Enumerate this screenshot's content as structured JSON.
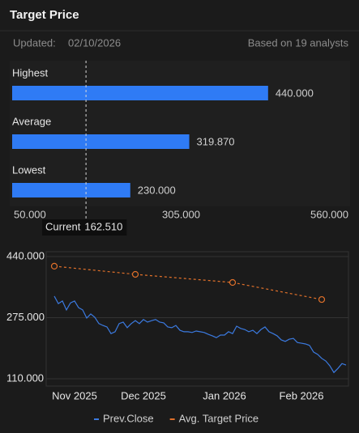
{
  "header": {
    "title": "Target Price",
    "updated_label": "Updated:",
    "updated_date": "02/10/2026",
    "analysts": "Based on 19 analysts"
  },
  "chart_data": [
    {
      "type": "bar",
      "orientation": "horizontal",
      "categories": [
        "Highest",
        "Average",
        "Lowest"
      ],
      "values": [
        440,
        319.87,
        230
      ],
      "value_labels": [
        "440.000",
        "319.870",
        "230.000"
      ],
      "color": "#2f7bf5",
      "xlim": [
        50,
        560
      ],
      "xticks": [
        {
          "value": 50,
          "label": "50.000"
        },
        {
          "value": 305,
          "label": "305.000"
        },
        {
          "value": 560,
          "label": "560.000"
        }
      ],
      "reference_line": {
        "label": "Current",
        "value": 162.51,
        "value_label": "162.510"
      }
    },
    {
      "type": "line",
      "categories": [
        null,
        null,
        null,
        null,
        null,
        "Nov 2025",
        null,
        null,
        null,
        null,
        null,
        null,
        null,
        null,
        null,
        null,
        null,
        null,
        null,
        null,
        null,
        null,
        "Dec 2025",
        null,
        null,
        null,
        null,
        null,
        null,
        null,
        null,
        null,
        null,
        null,
        null,
        null,
        null,
        null,
        null,
        null,
        null,
        null,
        "Jan 2026",
        null,
        null,
        null,
        null,
        null,
        null,
        null,
        null,
        null,
        null,
        null,
        null,
        null,
        null,
        null,
        null,
        null,
        null,
        "Feb 2026",
        null,
        null,
        null,
        null,
        null,
        null,
        null,
        null,
        null,
        null,
        null
      ],
      "series": [
        {
          "name": "Prev.Close",
          "color": "#3b7ae0",
          "values": [
            333,
            313,
            320,
            296,
            315,
            320,
            302,
            296,
            274,
            285,
            276,
            259,
            254,
            250,
            232,
            237,
            259,
            263,
            248,
            259,
            267,
            259,
            270,
            263,
            267,
            270,
            263,
            261,
            250,
            248,
            254,
            241,
            237,
            237,
            235,
            239,
            237,
            235,
            230,
            226,
            221,
            228,
            228,
            237,
            232,
            252,
            246,
            243,
            237,
            241,
            232,
            243,
            250,
            237,
            232,
            226,
            215,
            211,
            217,
            219,
            208,
            206,
            204,
            200,
            182,
            176,
            165,
            158,
            145,
            127,
            138,
            151,
            147
          ]
        },
        {
          "name": "Avg. Target Price",
          "color": "#e0702a",
          "dashed": true,
          "markers": true,
          "connect_gaps": true,
          "values": [
            414,
            null,
            null,
            null,
            null,
            null,
            null,
            null,
            null,
            null,
            null,
            null,
            null,
            null,
            null,
            null,
            null,
            null,
            null,
            null,
            392,
            null,
            null,
            null,
            null,
            null,
            null,
            null,
            null,
            null,
            null,
            null,
            null,
            null,
            null,
            null,
            null,
            null,
            null,
            null,
            null,
            null,
            null,
            null,
            370,
            null,
            null,
            null,
            null,
            null,
            null,
            null,
            null,
            null,
            null,
            null,
            null,
            null,
            null,
            null,
            null,
            null,
            null,
            null,
            null,
            null,
            324,
            null,
            null,
            null,
            null,
            null,
            null
          ]
        }
      ],
      "ylim": [
        110,
        440
      ],
      "yticks": [
        {
          "value": 110,
          "label": "110.000"
        },
        {
          "value": 275,
          "label": "275.000"
        },
        {
          "value": 440,
          "label": "440.000"
        }
      ],
      "grid": true,
      "legend": "bottom"
    }
  ]
}
